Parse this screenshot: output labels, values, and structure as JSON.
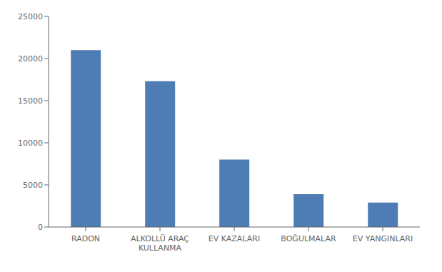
{
  "chart_data": {
    "type": "bar",
    "categories": [
      "RADON",
      "ALKOLLÜ ARAÇ\nKULLANMA",
      "EV KAZALARI",
      "BOĞULMALAR",
      "EV YANGINLARI"
    ],
    "values": [
      21000,
      17300,
      8000,
      3900,
      2900
    ],
    "color": "#4e7db5",
    "ylim": [
      0,
      25000
    ],
    "yticks": [
      0,
      5000,
      10000,
      15000,
      20000,
      25000
    ],
    "grid": false
  }
}
